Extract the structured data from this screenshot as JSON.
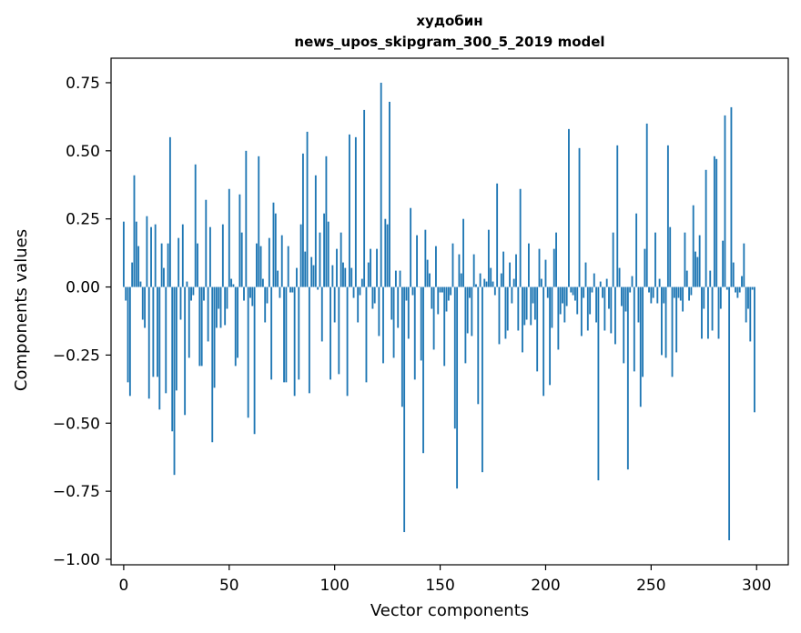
{
  "chart_data": {
    "type": "bar",
    "title_line1": "худобин",
    "title_line2": "news_upos_skipgram_300_5_2019 model",
    "xlabel": "Vector components",
    "ylabel": "Components values",
    "xlim": [
      -6,
      315
    ],
    "ylim": [
      -1.02,
      0.84
    ],
    "xticks": [
      0,
      50,
      100,
      150,
      200,
      250,
      300
    ],
    "xtick_labels": [
      "0",
      "50",
      "100",
      "150",
      "200",
      "250",
      "300"
    ],
    "yticks": [
      0.75,
      0.5,
      0.25,
      0.0,
      -0.25,
      -0.5,
      -0.75,
      -1.0
    ],
    "ytick_labels": [
      "0.75",
      "0.50",
      "0.25",
      "0.00",
      "−0.25",
      "−0.50",
      "−0.75",
      "−1.00"
    ],
    "bar_color": "#1f77b4",
    "series": [
      {
        "name": "components",
        "x_start": 0,
        "values": [
          0.24,
          -0.05,
          -0.35,
          -0.4,
          0.09,
          0.41,
          0.24,
          0.15,
          0.02,
          -0.12,
          -0.15,
          0.26,
          -0.41,
          0.22,
          -0.33,
          0.23,
          -0.33,
          -0.45,
          0.16,
          0.07,
          -0.39,
          0.16,
          0.55,
          -0.53,
          -0.69,
          -0.38,
          0.18,
          -0.12,
          0.23,
          -0.47,
          0.02,
          -0.26,
          -0.05,
          -0.03,
          0.45,
          0.16,
          -0.29,
          -0.29,
          -0.05,
          0.32,
          -0.2,
          0.22,
          -0.57,
          -0.37,
          -0.15,
          -0.08,
          -0.15,
          0.23,
          -0.14,
          -0.08,
          0.36,
          0.03,
          0.01,
          -0.29,
          -0.26,
          0.34,
          0.2,
          -0.05,
          0.5,
          -0.48,
          -0.04,
          -0.07,
          -0.54,
          0.16,
          0.48,
          0.15,
          0.03,
          -0.13,
          -0.06,
          0.18,
          -0.34,
          0.31,
          0.27,
          0.06,
          -0.04,
          0.19,
          -0.35,
          -0.35,
          0.15,
          -0.02,
          -0.02,
          -0.4,
          0.07,
          -0.34,
          0.23,
          0.49,
          0.13,
          0.57,
          -0.39,
          0.11,
          0.08,
          0.41,
          -0.01,
          0.2,
          -0.2,
          0.27,
          0.48,
          0.24,
          -0.34,
          0.08,
          -0.13,
          0.14,
          -0.32,
          0.2,
          0.09,
          0.07,
          -0.4,
          0.56,
          0.07,
          -0.04,
          0.55,
          -0.13,
          -0.03,
          0.03,
          0.65,
          -0.35,
          0.09,
          0.14,
          -0.08,
          -0.06,
          0.14,
          -0.18,
          0.75,
          -0.28,
          0.25,
          0.23,
          0.68,
          -0.12,
          -0.26,
          0.06,
          -0.15,
          0.06,
          -0.44,
          -0.9,
          -0.05,
          -0.19,
          0.29,
          -0.03,
          -0.34,
          0.19,
          0.0,
          -0.27,
          -0.61,
          0.21,
          0.1,
          0.05,
          -0.08,
          -0.23,
          0.15,
          -0.1,
          -0.02,
          -0.02,
          -0.29,
          -0.09,
          -0.05,
          -0.03,
          0.16,
          -0.52,
          -0.74,
          0.12,
          0.05,
          0.25,
          -0.28,
          -0.17,
          -0.04,
          -0.18,
          0.12,
          0.01,
          -0.43,
          0.05,
          -0.68,
          0.03,
          0.02,
          0.21,
          0.07,
          0.02,
          -0.03,
          0.38,
          -0.21,
          0.05,
          0.13,
          -0.19,
          -0.16,
          0.09,
          -0.06,
          0.03,
          0.12,
          -0.16,
          0.36,
          -0.24,
          -0.14,
          -0.12,
          0.16,
          -0.14,
          -0.06,
          -0.12,
          -0.31,
          0.14,
          0.03,
          -0.4,
          0.1,
          -0.04,
          -0.36,
          -0.15,
          0.14,
          0.2,
          -0.23,
          -0.1,
          -0.06,
          -0.13,
          -0.07,
          0.58,
          -0.02,
          -0.03,
          -0.05,
          -0.1,
          0.51,
          -0.18,
          -0.04,
          0.09,
          -0.16,
          -0.1,
          -0.02,
          0.05,
          -0.13,
          -0.71,
          0.02,
          -0.04,
          -0.16,
          0.03,
          -0.08,
          -0.17,
          0.2,
          -0.21,
          0.52,
          0.07,
          -0.07,
          -0.28,
          -0.09,
          -0.67,
          -0.02,
          0.04,
          -0.31,
          0.27,
          -0.13,
          -0.44,
          -0.33,
          0.14,
          0.6,
          -0.02,
          -0.06,
          -0.04,
          0.2,
          -0.06,
          0.03,
          -0.25,
          -0.06,
          -0.26,
          0.52,
          0.22,
          -0.33,
          -0.04,
          -0.24,
          -0.04,
          -0.05,
          -0.09,
          0.2,
          0.06,
          -0.05,
          -0.03,
          0.3,
          0.13,
          0.11,
          0.19,
          -0.19,
          -0.08,
          0.43,
          -0.19,
          0.06,
          -0.16,
          0.48,
          0.47,
          -0.19,
          -0.08,
          0.17,
          0.63,
          -0.01,
          -0.93,
          0.66,
          0.09,
          -0.02,
          -0.04,
          -0.02,
          0.04,
          0.16,
          -0.13,
          -0.08,
          -0.2,
          -0.01,
          -0.46
        ]
      }
    ]
  }
}
